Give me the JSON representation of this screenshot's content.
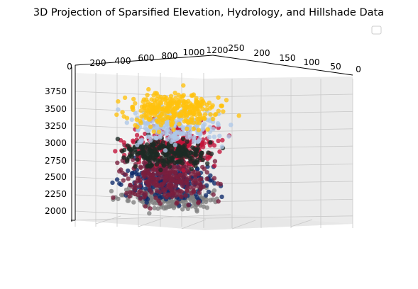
{
  "chart_data": {
    "type": "scatter",
    "projection": "3d",
    "title": "3D Projection of Sparsified Elevation, Hydrology, and Hillshade Data",
    "xlabel": "",
    "ylabel": "",
    "zlabel": "",
    "xlim": [
      0,
      1300
    ],
    "ylim": [
      0,
      270
    ],
    "zlim": [
      1850,
      3850
    ],
    "x_ticks": [
      "0",
      "200",
      "400",
      "600",
      "800",
      "1000",
      "1200"
    ],
    "y_ticks": [
      "250",
      "200",
      "150",
      "100",
      "50",
      "0"
    ],
    "z_ticks": [
      "3750",
      "3500",
      "3250",
      "3000",
      "2750",
      "2500",
      "2250",
      "2000"
    ],
    "grid": true,
    "legend": {
      "placement": "top-right",
      "entries": [
        ""
      ]
    },
    "series": [
      {
        "color": "#808080",
        "elevation_range": [
          2000,
          2400
        ],
        "approx_points": 230
      },
      {
        "color": "#0e2a6a",
        "elevation_range": [
          2050,
          2850
        ],
        "approx_points": 230
      },
      {
        "color": "#7a1f3d",
        "elevation_range": [
          2000,
          3050
        ],
        "approx_points": 340
      },
      {
        "color": "#c3133a",
        "elevation_range": [
          2600,
          3350
        ],
        "approx_points": 280
      },
      {
        "color": "#1c2a24",
        "elevation_range": [
          2600,
          3100
        ],
        "approx_points": 240
      },
      {
        "color": "#aec8e8",
        "elevation_range": [
          2900,
          3550
        ],
        "approx_points": 220
      },
      {
        "color": "#ffc20e",
        "elevation_range": [
          3150,
          3800
        ],
        "approx_points": 300
      }
    ]
  }
}
